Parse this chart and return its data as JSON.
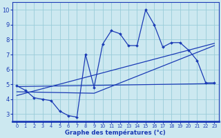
{
  "x": [
    0,
    1,
    2,
    3,
    4,
    5,
    6,
    7,
    8,
    9,
    10,
    11,
    12,
    13,
    14,
    15,
    16,
    17,
    18,
    19,
    20,
    21,
    22,
    23
  ],
  "y_temp": [
    4.9,
    4.6,
    4.1,
    4.0,
    3.9,
    3.2,
    2.9,
    2.8,
    7.0,
    4.8,
    7.7,
    8.6,
    8.4,
    7.6,
    7.6,
    10.0,
    9.0,
    7.5,
    7.8,
    7.8,
    7.3,
    6.6,
    5.1,
    5.1
  ],
  "line1_x": [
    0,
    23
  ],
  "line1_y": [
    4.85,
    5.05
  ],
  "line2_x": [
    0,
    9,
    23
  ],
  "line2_y": [
    4.5,
    4.4,
    7.6
  ],
  "line3_x": [
    0,
    23
  ],
  "line3_y": [
    4.25,
    7.75
  ],
  "bg_color": "#cce8f0",
  "grid_color": "#99ccd9",
  "line_color": "#1a3ab5",
  "xlabel": "Graphe des températures (°c)",
  "xlim": [
    -0.5,
    23.5
  ],
  "ylim": [
    2.5,
    10.5
  ],
  "yticks": [
    3,
    4,
    5,
    6,
    7,
    8,
    9,
    10
  ],
  "xticks": [
    0,
    1,
    2,
    3,
    4,
    5,
    6,
    7,
    8,
    9,
    10,
    11,
    12,
    13,
    14,
    15,
    16,
    17,
    18,
    19,
    20,
    21,
    22,
    23
  ]
}
